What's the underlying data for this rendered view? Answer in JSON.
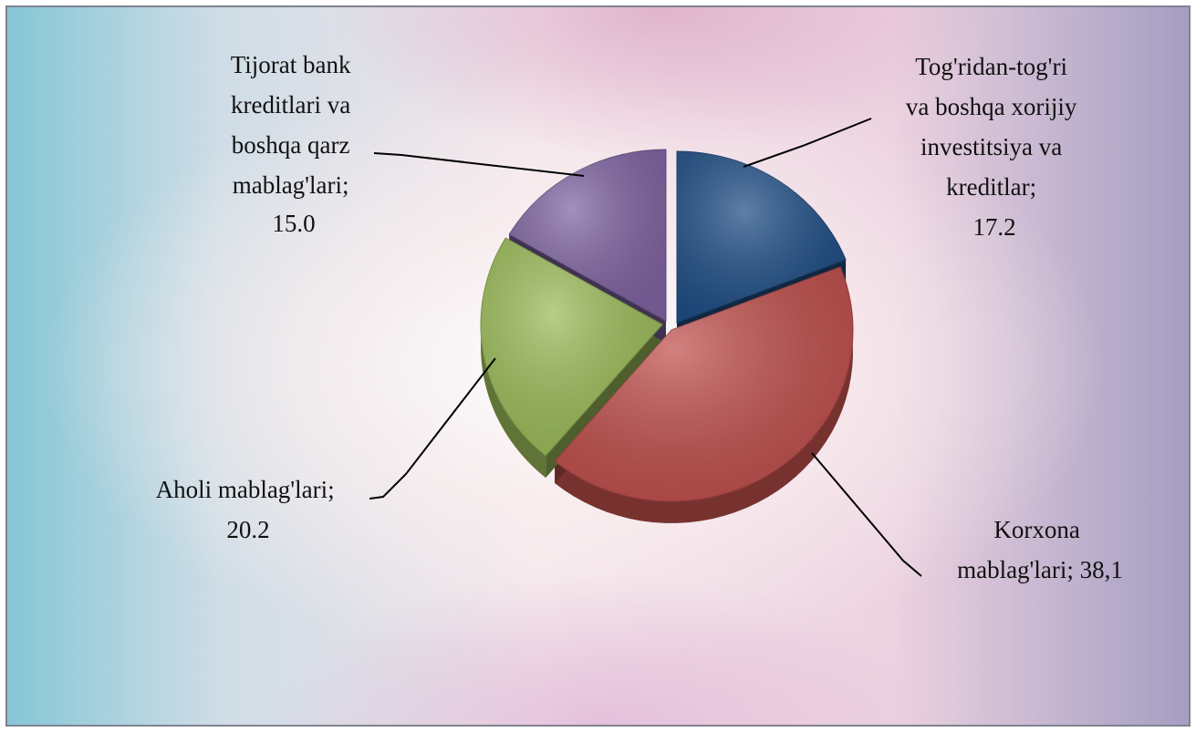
{
  "chart_data": {
    "type": "pie",
    "slices": [
      {
        "label_lines": [
          "Tog'ridan-tog'ri",
          "va boshqa xorijiy",
          "investitsiya va",
          "kreditlar;",
          "17.2"
        ],
        "category": "Tog'ridan-tog'ri va boshqa xorijiy investitsiya va kreditlar",
        "value": 17.2,
        "color": "#1f4e86"
      },
      {
        "label_lines": [
          "Korxona",
          "mablag'lari;   38,1"
        ],
        "category": "Korxona mablag'lari",
        "value": 38.1,
        "color": "#c0504d"
      },
      {
        "label_lines": [
          "Aholi mablag'lari;",
          "20.2"
        ],
        "category": "Aholi mablag'lari",
        "value": 20.2,
        "color": "#9bbb59"
      },
      {
        "label_lines": [
          "Tijorat bank",
          "kreditlari va",
          "boshqa qarz",
          "mablag'lari;",
          "15.0"
        ],
        "category": "Tijorat bank kreditlari va boshqa qarz mablag'lari",
        "value": 15.0,
        "color": "#8064a2"
      }
    ],
    "style": "3d-exploded"
  }
}
